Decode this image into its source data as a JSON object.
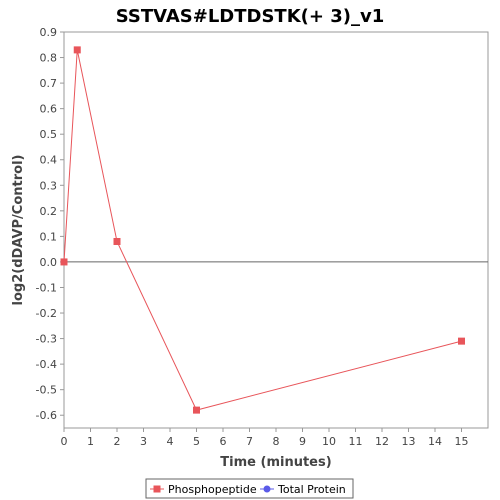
{
  "chart_data": {
    "type": "line",
    "title": "SSTVAS#LDTDSTK(+ 3)_v1",
    "xlabel": "Time (minutes)",
    "ylabel": "log2(dDAVP/Control)",
    "xlim": [
      0,
      16
    ],
    "ylim": [
      -0.65,
      0.9
    ],
    "x_ticks": [
      "0",
      "1",
      "2",
      "3",
      "4",
      "5",
      "6",
      "7",
      "8",
      "9",
      "10",
      "11",
      "12",
      "13",
      "14",
      "15"
    ],
    "y_ticks": [
      "0.9",
      "0.8",
      "0.7",
      "0.6",
      "0.5",
      "0.4",
      "0.3",
      "0.2",
      "0.1",
      "0.0",
      "-0.1",
      "-0.2",
      "-0.3",
      "-0.4",
      "-0.5",
      "-0.6"
    ],
    "grid": false,
    "legend_position": "bottom",
    "series": [
      {
        "name": "Phosphopeptide",
        "color": "#e8555a",
        "marker": "square",
        "x": [
          0,
          0.5,
          2,
          5,
          15
        ],
        "y": [
          0.0,
          0.83,
          0.08,
          -0.58,
          -0.31
        ]
      },
      {
        "name": "Total Protein",
        "color": "#5a5ae8",
        "marker": "circle",
        "x": [],
        "y": []
      }
    ]
  }
}
